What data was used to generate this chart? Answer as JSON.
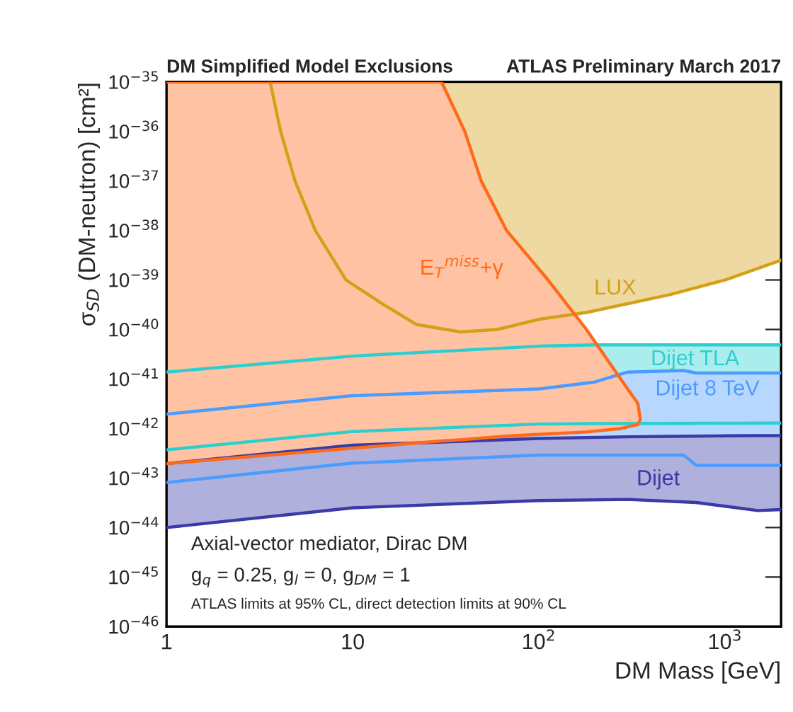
{
  "chart_data": {
    "type": "line",
    "title": "DM Simplified Model Exclusions",
    "subtitle": "ATLAS Preliminary March 2017",
    "xlabel": "DM Mass [GeV]",
    "ylabel": "σ$_{SD}$ (DM-neutron) [cm²]",
    "log": "xy",
    "xlim": [
      1,
      2000
    ],
    "ylim": [
      1e-46,
      1e-35
    ],
    "xticks": [
      1,
      10,
      {
        "value": 100,
        "label": "10$^{2}$"
      },
      {
        "value": 1000,
        "label": "10$^{3}$"
      }
    ],
    "yticks": [
      {
        "value": 1e-46,
        "label": "10$^{−46}$"
      },
      {
        "value": 1e-45,
        "label": "10$^{−45}$"
      },
      {
        "value": 1e-44,
        "label": "10$^{−44}$"
      },
      {
        "value": 1e-43,
        "label": "10$^{−43}$"
      },
      {
        "value": 1e-42,
        "label": "10$^{−42}$"
      },
      {
        "value": 1e-41,
        "label": "10$^{−41}$"
      },
      {
        "value": 1e-40,
        "label": "10$^{−40}$"
      },
      {
        "value": 1e-39,
        "label": "10$^{−39}$"
      },
      {
        "value": 1e-38,
        "label": "10$^{−38}$"
      },
      {
        "value": 1e-37,
        "label": "10$^{−37}$"
      },
      {
        "value": 1e-36,
        "label": "10$^{−36}$"
      },
      {
        "value": 1e-35,
        "label": "10$^{−35}$"
      }
    ],
    "grid": false,
    "series": [
      {
        "name": "LUX",
        "color": "#d4a017",
        "x": [
          3.6,
          4.1,
          4.9,
          6.3,
          9.2,
          14.6,
          22,
          38,
          60,
          100,
          180,
          500,
          1000,
          2000
        ],
        "values": [
          1e-35,
          1e-36,
          1e-37,
          1e-38,
          1e-39,
          3.2e-40,
          1.26e-40,
          8.9e-41,
          1e-40,
          1.6e-40,
          2.2e-40,
          5e-40,
          1e-39,
          2.5e-39
        ],
        "lower": [
          1e-35,
          1e-36,
          1e-37,
          1e-38,
          1e-39,
          3.2e-40,
          1.26e-40,
          8.9e-41,
          1e-40,
          1.6e-40,
          2.2e-40,
          5e-40,
          1e-39,
          2.5e-39
        ],
        "upper": [
          1e-35,
          1e-35,
          1e-35,
          1e-35,
          1e-35,
          1e-35,
          1e-35,
          1e-35,
          1e-35,
          1e-35,
          1e-35,
          1e-35,
          1e-35,
          1e-35
        ]
      },
      {
        "name": "Dijet TLA",
        "color": "#2ccfcf",
        "x": [
          1,
          10,
          100,
          200,
          2000
        ],
        "values": [
          1.38e-41,
          2.9e-41,
          4.6e-41,
          4.9e-41,
          4.9e-41
        ],
        "lower": [
          3.7e-43,
          8.7e-43,
          1.23e-42,
          1.26e-42,
          1.29e-42
        ],
        "upper": [
          1.38e-41,
          2.9e-41,
          4.6e-41,
          4.9e-41,
          4.9e-41
        ]
      },
      {
        "name": "Dijet 8 TeV",
        "color": "#4a9cff",
        "x": [
          1,
          10,
          100,
          200,
          300,
          600,
          700,
          2000
        ],
        "values": [
          1.95e-42,
          4.6e-42,
          6.3e-42,
          8.7e-42,
          1.38e-41,
          1.48e-41,
          1.32e-41,
          1.32e-41
        ],
        "lower": [
          8.1e-44,
          2e-43,
          2.9e-43,
          2.9e-43,
          2.9e-43,
          2.9e-43,
          1.8e-43,
          1.8e-43
        ],
        "upper": [
          1.95e-42,
          4.6e-42,
          6.3e-42,
          8.7e-42,
          1.38e-41,
          1.48e-41,
          1.32e-41,
          1.32e-41
        ]
      },
      {
        "name": "Dijet",
        "color": "#3a3aa8",
        "x": [
          1,
          10,
          100,
          300,
          700,
          1000,
          1500,
          2000
        ],
        "values": [
          1.95e-43,
          4.6e-43,
          6.3e-43,
          6.8e-43,
          7e-43,
          7.1e-43,
          7.2e-43,
          7.2e-43
        ],
        "lower": [
          1e-44,
          2.5e-44,
          3.5e-44,
          3.7e-44,
          3.2e-44,
          2.7e-44,
          2.2e-44,
          2.3e-44
        ],
        "upper": [
          1.95e-43,
          4.6e-43,
          6.3e-43,
          6.8e-43,
          7e-43,
          7.1e-43,
          7.2e-43,
          7.2e-43
        ]
      },
      {
        "name": "E$_{T}$$^{miss}$+γ",
        "color": "#ff6a1a",
        "x": [
          1,
          10,
          30,
          40,
          49,
          67,
          112,
          180,
          275,
          340,
          350
        ],
        "values": [
          1e-35,
          1e-35,
          1e-35,
          1e-36,
          1e-37,
          1e-38,
          1e-39,
          1e-40,
          1e-41,
          3.2e-42,
          1.6e-42
        ],
        "lower": [
          1.95e-43,
          4e-43,
          5.6e-43,
          6e-43,
          6.4e-43,
          7e-43,
          7.8e-43,
          8.5e-43,
          1e-42,
          1.2e-42,
          1.5e-42
        ],
        "upper": [
          1e-35,
          1e-35,
          1e-35,
          1e-36,
          1e-37,
          1e-38,
          1e-39,
          1e-40,
          1e-41,
          3.2e-42,
          1.6e-42
        ]
      },
      {
        "color": "#2ccfcf",
        "x": [
          1,
          10,
          100,
          200,
          2000
        ],
        "values": [
          3.7e-43,
          8.7e-43,
          1.23e-42,
          1.26e-42,
          1.29e-42
        ]
      },
      {
        "color": "#4a9cff",
        "x": [
          1,
          10,
          100,
          200,
          300,
          600,
          700,
          2000
        ],
        "values": [
          8.1e-44,
          2e-43,
          2.9e-43,
          2.9e-43,
          2.9e-43,
          2.9e-43,
          1.8e-43,
          1.8e-43
        ]
      },
      {
        "color": "#3a3aa8",
        "x": [
          1,
          10,
          100,
          300,
          700,
          1000,
          1500,
          2000
        ],
        "values": [
          1e-44,
          2.5e-44,
          3.5e-44,
          3.7e-44,
          3.2e-44,
          2.7e-44,
          2.2e-44,
          2.3e-44
        ]
      },
      {
        "color": "#ff6a1a",
        "x": [
          1,
          10,
          30,
          40,
          49,
          67,
          112,
          180,
          275,
          340,
          350
        ],
        "values": [
          1.95e-43,
          4e-43,
          5.6e-43,
          6e-43,
          6.4e-43,
          7e-43,
          7.8e-43,
          8.5e-43,
          1e-42,
          1.2e-42,
          1.5e-42
        ]
      }
    ],
    "annotations": [
      "Axial-vector mediator, Dirac DM",
      "g$_{q}$ = 0.25, g$_{l}$ = 0, g$_{DM}$ = 1",
      "ATLAS limits at 95% CL, direct detection limits at 90% CL"
    ]
  }
}
